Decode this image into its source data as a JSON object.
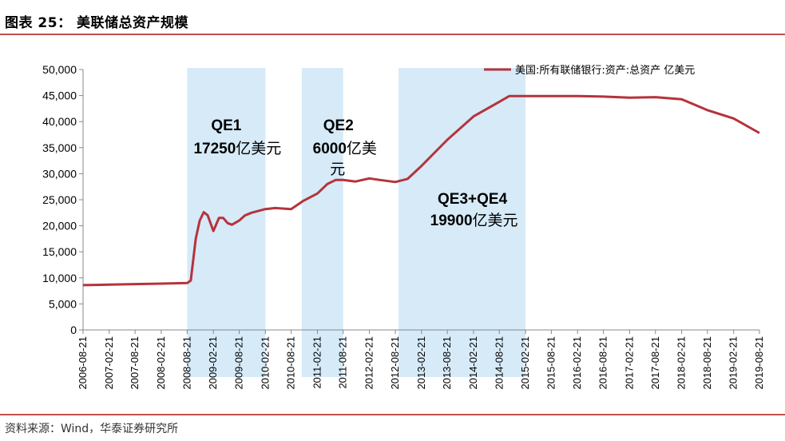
{
  "header": {
    "title": "图表 25：  美联储总资产规模"
  },
  "footer": {
    "source": "资料来源：Wind，华泰证券研究所"
  },
  "colors": {
    "series": "#b5333b",
    "band": "#d6eaf8",
    "rule": "#c0504d"
  },
  "chart_data": {
    "type": "line",
    "title": "美联储总资产规模",
    "ylim": [
      0,
      50000
    ],
    "yticks": [
      "0",
      "5,000",
      "10,000",
      "15,000",
      "20,000",
      "25,000",
      "30,000",
      "35,000",
      "40,000",
      "45,000",
      "50,000"
    ],
    "xticks": [
      "2006-08-21",
      "2007-02-21",
      "2007-08-21",
      "2008-02-21",
      "2008-08-21",
      "2009-02-21",
      "2009-08-21",
      "2010-02-21",
      "2010-08-21",
      "2011-02-21",
      "2011-08-21",
      "2012-02-21",
      "2012-08-21",
      "2013-02-21",
      "2013-08-21",
      "2014-02-21",
      "2014-08-21",
      "2015-02-21",
      "2015-08-21",
      "2016-02-21",
      "2016-08-21",
      "2017-02-21",
      "2017-08-21",
      "2018-02-21",
      "2018-08-21",
      "2019-02-21",
      "2019-08-21"
    ],
    "grid": false,
    "legend_position": "top-right",
    "series": [
      {
        "name": "美国:所有联储银行:资产:总资产 亿美元",
        "x": [
          "2006-08-21",
          "2007-02-21",
          "2007-08-21",
          "2008-02-21",
          "2008-08-21",
          "2008-09-15",
          "2008-10-20",
          "2008-11-17",
          "2008-12-15",
          "2009-01-12",
          "2009-02-21",
          "2009-04-01",
          "2009-05-01",
          "2009-06-01",
          "2009-07-01",
          "2009-08-21",
          "2009-10-01",
          "2009-11-15",
          "2010-02-21",
          "2010-05-01",
          "2010-08-21",
          "2010-11-15",
          "2011-02-21",
          "2011-05-01",
          "2011-06-30",
          "2011-08-21",
          "2011-11-15",
          "2012-02-21",
          "2012-05-01",
          "2012-08-21",
          "2012-11-15",
          "2013-02-21",
          "2013-08-21",
          "2014-02-21",
          "2014-08-21",
          "2014-10-29",
          "2015-02-21",
          "2015-08-21",
          "2016-02-21",
          "2016-08-21",
          "2017-02-21",
          "2017-08-21",
          "2018-02-21",
          "2018-08-21",
          "2019-02-21",
          "2019-08-21"
        ],
        "values": [
          8600,
          8700,
          8800,
          8900,
          9000,
          9500,
          17500,
          21000,
          22600,
          22000,
          19000,
          21500,
          21500,
          20500,
          20200,
          21000,
          22000,
          22500,
          23200,
          23400,
          23200,
          24800,
          26200,
          28000,
          28800,
          28800,
          28500,
          29100,
          28800,
          28400,
          29000,
          31500,
          36500,
          41000,
          43800,
          44900,
          44900,
          44900,
          44900,
          44800,
          44600,
          44700,
          44300,
          42200,
          40600,
          37800
        ]
      }
    ],
    "bands": [
      {
        "start": "2008-08-21",
        "end": "2010-02-21",
        "label_line1": "QE1",
        "label_num": "17250",
        "label_unit": "亿美元"
      },
      {
        "start": "2010-11-03",
        "end": "2011-08-21",
        "label_line1": "QE2",
        "label_num": "6000",
        "label_unit1": "亿美",
        "label_unit2": "元"
      },
      {
        "start": "2012-09-13",
        "end": "2015-02-21",
        "label_line1": "QE3+QE4",
        "label_num": "19900",
        "label_unit": "亿美元"
      }
    ]
  }
}
